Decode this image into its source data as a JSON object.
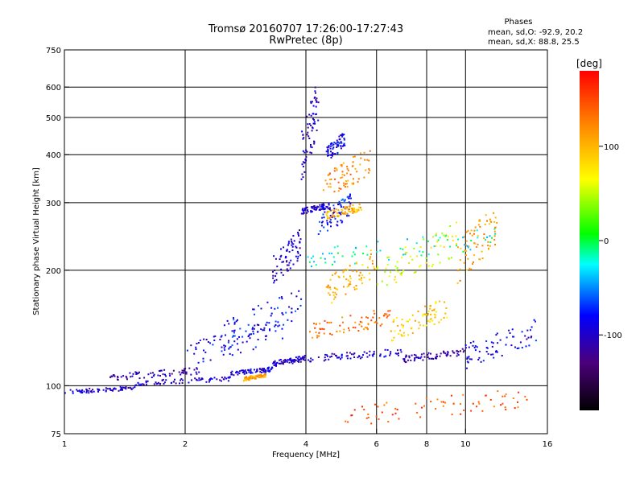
{
  "chart_data": {
    "type": "scatter",
    "title": "Tromsø 20160707 17:26:00-17:27:43",
    "subtitle": "RwPretec (8p)",
    "xlabel": "Frequency [MHz]",
    "ylabel": "Stationary phase Virtual Height [km]",
    "x_scale": "log",
    "y_scale": "log",
    "xlim": [
      1,
      16
    ],
    "ylim": [
      75,
      750
    ],
    "x_ticks": [
      1,
      2,
      4,
      6,
      8,
      10,
      16
    ],
    "y_ticks": [
      75,
      100,
      200,
      300,
      400,
      500,
      600,
      750
    ],
    "x_gridlines": [
      2,
      4,
      6,
      8,
      10
    ],
    "y_gridlines": [
      100,
      200,
      300,
      400,
      500,
      600
    ],
    "grid": true,
    "stats": {
      "heading": "Phases",
      "line1": "mean, sd,O: -92.9, 20.2",
      "line2": "mean, sd,X:  88.8, 25.5"
    },
    "colorbar": {
      "label": "[deg]",
      "range": [
        -180,
        180
      ],
      "ticks": [
        100,
        0,
        -100
      ],
      "colors": [
        "#000000",
        "#4b007a",
        "#0000ff",
        "#00ffff",
        "#00ff00",
        "#ffff00",
        "#ff7f00",
        "#ff0000"
      ]
    },
    "traces": [
      {
        "f": [
          1.0,
          1.5
        ],
        "h": [
          95,
          100
        ],
        "phase": -100
      },
      {
        "f": [
          1.5,
          2.6
        ],
        "h": [
          100,
          106
        ],
        "phase": -100
      },
      {
        "f": [
          2.6,
          3.3
        ],
        "h": [
          106,
          112
        ],
        "phase": -95
      },
      {
        "f": [
          2.8,
          3.2
        ],
        "h": [
          103,
          108
        ],
        "phase": 110
      },
      {
        "f": [
          3.3,
          4.0
        ],
        "h": [
          112,
          120
        ],
        "phase": -100
      },
      {
        "f": [
          1.3,
          2.2
        ],
        "h": [
          103,
          112
        ],
        "phase": -110
      },
      {
        "f": [
          2.0,
          3.5
        ],
        "h": [
          112,
          150
        ],
        "phase": -90
      },
      {
        "f": [
          2.5,
          3.9
        ],
        "h": [
          125,
          180
        ],
        "phase": -80
      },
      {
        "f": [
          3.3,
          3.9
        ],
        "h": [
          180,
          260
        ],
        "phase": -100
      },
      {
        "f": [
          3.9,
          4.3
        ],
        "h": [
          330,
          640
        ],
        "phase": -100
      },
      {
        "f": [
          3.9,
          4.6
        ],
        "h": [
          280,
          300
        ],
        "phase": -100
      },
      {
        "f": [
          4.5,
          5.0
        ],
        "h": [
          380,
          460
        ],
        "phase": -90
      },
      {
        "f": [
          4.3,
          5.2
        ],
        "h": [
          240,
          320
        ],
        "phase": -80
      },
      {
        "f": [
          4.4,
          5.8
        ],
        "h": [
          300,
          420
        ],
        "phase": 120
      },
      {
        "f": [
          4.5,
          5.5
        ],
        "h": [
          270,
          300
        ],
        "phase": 100
      },
      {
        "f": [
          4.5,
          6.0
        ],
        "h": [
          160,
          230
        ],
        "phase": 100
      },
      {
        "f": [
          4.0,
          6.5
        ],
        "h": [
          130,
          160
        ],
        "phase": 130
      },
      {
        "f": [
          4.0,
          7.0
        ],
        "h": [
          115,
          125
        ],
        "phase": -100
      },
      {
        "f": [
          6.5,
          9.0
        ],
        "h": [
          130,
          170
        ],
        "phase": 90
      },
      {
        "f": [
          6.0,
          9.5
        ],
        "h": [
          175,
          270
        ],
        "phase": 60
      },
      {
        "f": [
          7.0,
          10.0
        ],
        "h": [
          115,
          125
        ],
        "phase": -110
      },
      {
        "f": [
          9.5,
          12.0
        ],
        "h": [
          180,
          310
        ],
        "phase": 110
      },
      {
        "f": [
          10.0,
          15.0
        ],
        "h": [
          110,
          150
        ],
        "phase": -90
      },
      {
        "f": [
          5.0,
          15.0
        ],
        "h": [
          78,
          100
        ],
        "phase": 140
      },
      {
        "f": [
          4.0,
          12.0
        ],
        "h": [
          200,
          260
        ],
        "phase": -20
      }
    ]
  }
}
